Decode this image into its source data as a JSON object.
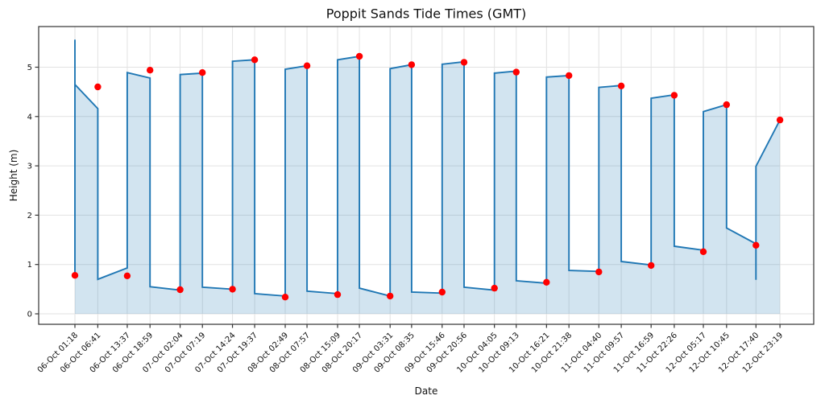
{
  "chart_data": {
    "type": "line",
    "title": "Poppit Sands Tide Times (GMT)",
    "xlabel": "Date",
    "ylabel": "Height (m)",
    "grid": true,
    "legend": false,
    "yticks": [
      0,
      1,
      2,
      3,
      4,
      5
    ],
    "ylim": [
      -0.3,
      5.85
    ],
    "x_tick_labels": [
      "06-Oct 01:18",
      "06-Oct 06:41",
      "06-Oct 13:37",
      "06-Oct 18:59",
      "07-Oct 02:04",
      "07-Oct 07:19",
      "07-Oct 14:24",
      "07-Oct 19:37",
      "08-Oct 02:49",
      "08-Oct 07:57",
      "08-Oct 15:09",
      "08-Oct 20:17",
      "09-Oct 03:31",
      "09-Oct 08:35",
      "09-Oct 15:46",
      "09-Oct 20:56",
      "10-Oct 04:05",
      "10-Oct 09:13",
      "10-Oct 16:21",
      "10-Oct 21:38",
      "11-Oct 04:40",
      "11-Oct 09:57",
      "11-Oct 16:59",
      "11-Oct 22:26",
      "12-Oct 05:17",
      "12-Oct 10:45",
      "12-Oct 17:40",
      "12-Oct 23:19"
    ],
    "x_hours": [
      0,
      5.38,
      12.32,
      17.68,
      24.77,
      30.02,
      37.1,
      42.32,
      49.52,
      54.65,
      61.85,
      66.98,
      74.22,
      79.28,
      86.47,
      91.63,
      98.78,
      103.92,
      111.05,
      116.33,
      123.37,
      128.65,
      135.68,
      141.13,
      147.98,
      153.45,
      160.37,
      166.02
    ],
    "series": [
      {
        "name": "tide-height-line",
        "type": "line-with-area",
        "color": "#1f77b4",
        "fill_color": "rgba(31,119,180,0.2)",
        "vertices_hour_height": [
          [
            0,
            5.56
          ],
          [
            0,
            0.78
          ],
          [
            0,
            4.65
          ],
          [
            5.38,
            4.16
          ],
          [
            5.38,
            0.7
          ],
          [
            12.32,
            0.93
          ],
          [
            12.32,
            4.89
          ],
          [
            17.68,
            4.78
          ],
          [
            17.68,
            0.55
          ],
          [
            24.77,
            0.48
          ],
          [
            24.77,
            4.85
          ],
          [
            30.02,
            4.88
          ],
          [
            30.02,
            0.54
          ],
          [
            37.1,
            0.5
          ],
          [
            37.1,
            5.12
          ],
          [
            42.32,
            5.15
          ],
          [
            42.32,
            0.41
          ],
          [
            49.52,
            0.36
          ],
          [
            49.52,
            4.96
          ],
          [
            54.65,
            5.03
          ],
          [
            54.65,
            0.46
          ],
          [
            61.85,
            0.41
          ],
          [
            61.85,
            5.15
          ],
          [
            66.98,
            5.22
          ],
          [
            66.98,
            0.52
          ],
          [
            74.22,
            0.36
          ],
          [
            74.22,
            4.97
          ],
          [
            79.28,
            5.05
          ],
          [
            79.28,
            0.44
          ],
          [
            86.47,
            0.42
          ],
          [
            86.47,
            5.06
          ],
          [
            91.63,
            5.11
          ],
          [
            91.63,
            0.54
          ],
          [
            98.78,
            0.48
          ],
          [
            98.78,
            4.88
          ],
          [
            103.92,
            4.92
          ],
          [
            103.92,
            0.67
          ],
          [
            111.05,
            0.62
          ],
          [
            111.05,
            4.8
          ],
          [
            116.33,
            4.83
          ],
          [
            116.33,
            0.88
          ],
          [
            123.37,
            0.86
          ],
          [
            123.37,
            4.59
          ],
          [
            128.65,
            4.63
          ],
          [
            128.65,
            1.06
          ],
          [
            135.68,
            0.99
          ],
          [
            135.68,
            4.37
          ],
          [
            141.13,
            4.44
          ],
          [
            141.13,
            1.37
          ],
          [
            147.98,
            1.29
          ],
          [
            147.98,
            4.1
          ],
          [
            153.45,
            4.24
          ],
          [
            153.45,
            1.74
          ],
          [
            160.37,
            1.42
          ],
          [
            160.37,
            0.69
          ],
          [
            160.37,
            2.99
          ],
          [
            166.02,
            3.93
          ]
        ]
      },
      {
        "name": "tide-extreme-points",
        "type": "scatter",
        "color": "#ff0000",
        "marker_radius": 4.2,
        "x_hours": [
          0,
          5.38,
          12.32,
          17.68,
          24.77,
          30.02,
          37.1,
          42.32,
          49.52,
          54.65,
          61.85,
          66.98,
          74.22,
          79.28,
          86.47,
          91.63,
          98.78,
          103.92,
          111.05,
          116.33,
          123.37,
          128.65,
          135.68,
          141.13,
          147.98,
          153.45,
          160.37,
          166.02
        ],
        "heights": [
          0.78,
          4.6,
          0.77,
          4.94,
          0.49,
          4.89,
          0.5,
          5.15,
          0.34,
          5.03,
          0.39,
          5.22,
          0.36,
          5.05,
          0.44,
          5.1,
          0.52,
          4.9,
          0.64,
          4.83,
          0.85,
          4.62,
          0.98,
          4.43,
          1.26,
          4.24,
          1.39,
          3.93
        ]
      }
    ],
    "colors": {
      "line": "#1f77b4",
      "area_fill": "rgba(31,119,180,0.2)",
      "marker": "#ff0000",
      "grid": "#e2e2e2",
      "spine": "#333333",
      "text": "#111111"
    }
  }
}
